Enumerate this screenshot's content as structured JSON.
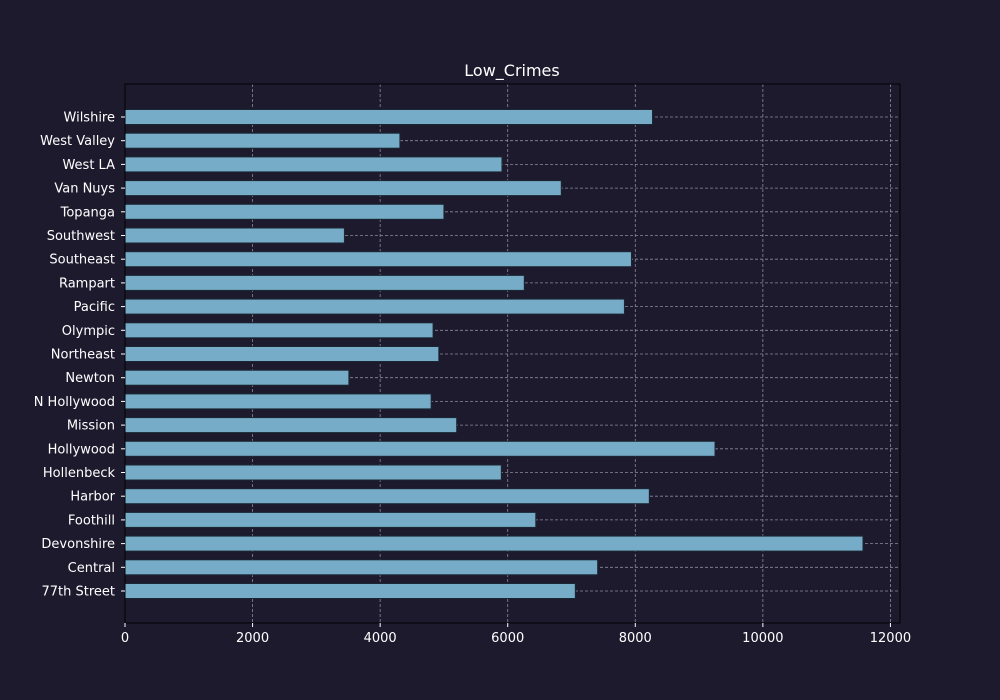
{
  "colors": {
    "background": "#1e1a2e",
    "bar_fill": "#76acc7",
    "bar_edge": "#1a2733",
    "grid": "#8a8a9a",
    "axis": "#000000",
    "text": "#ffffff"
  },
  "chart_data": {
    "type": "bar",
    "orientation": "horizontal",
    "title": "Low_Crimes",
    "xlabel": "",
    "ylabel": "",
    "categories": [
      "77th Street",
      "Central",
      "Devonshire",
      "Foothill",
      "Harbor",
      "Hollenbeck",
      "Hollywood",
      "Mission",
      "N Hollywood",
      "Newton",
      "Northeast",
      "Olympic",
      "Pacific",
      "Rampart",
      "Southeast",
      "Southwest",
      "Topanga",
      "Van Nuys",
      "West LA",
      "West Valley",
      "Wilshire"
    ],
    "values": [
      7060,
      7410,
      11570,
      6440,
      8220,
      5900,
      9250,
      5200,
      4800,
      3510,
      4920,
      4830,
      7830,
      6260,
      7940,
      3440,
      5000,
      6840,
      5910,
      4310,
      8270
    ],
    "xlim": [
      0,
      12150
    ],
    "xticks": [
      0,
      2000,
      4000,
      6000,
      8000,
      10000,
      12000
    ],
    "xtick_labels": [
      "0",
      "2000",
      "4000",
      "6000",
      "8000",
      "10000",
      "12000"
    ],
    "grid": true,
    "grid_style": "dashed"
  }
}
